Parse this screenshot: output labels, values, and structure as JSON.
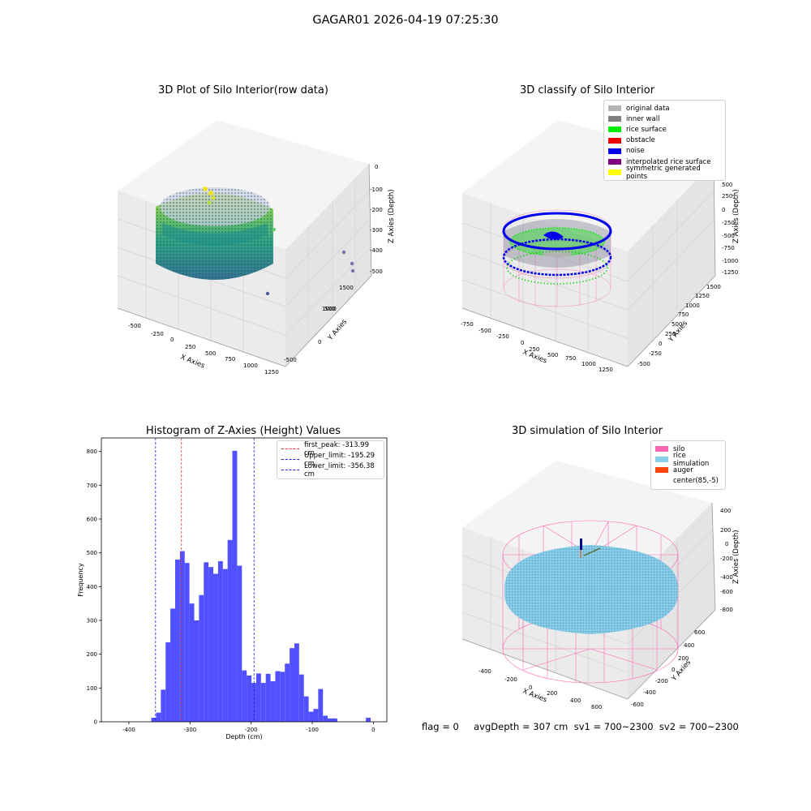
{
  "suptitle": "GAGAR01 2026-04-19 07:25:30",
  "footer": "flag = 0     avgDepth = 307 cm  sv1 = 700~2300  sv2 = 700~2300",
  "colors": {
    "hist_bar": "#5050ff",
    "peak_line": "#e03030",
    "limit_line": "#2020dd",
    "silo": "#ff69b4",
    "rice": "#87cefa",
    "noise": "#0000ee",
    "surface": "#00ee00"
  },
  "panels": {
    "p1": {
      "title": "3D Plot of Silo Interior(row data)",
      "xlabel": "X Axies",
      "ylabel": "Y Axies",
      "zlabel": "Z Axies (Depth)",
      "xticks": [
        "-500",
        "-250",
        "0",
        "250",
        "500",
        "750",
        "1000",
        "1250"
      ],
      "yticks": [
        "-500",
        "0",
        "500",
        "1000",
        "1500"
      ],
      "zticks": [
        "0",
        "-100",
        "-200",
        "-300",
        "-400",
        "-500"
      ]
    },
    "p2": {
      "title": "3D classify of Silo Interior",
      "xlabel": "X Axies",
      "ylabel": "Y Axies",
      "zlabel": "Z Axies (Depth)",
      "xticks": [
        "-750",
        "-500",
        "-250",
        "0",
        "250",
        "500",
        "750",
        "1000",
        "1250"
      ],
      "yticks": [
        "-500",
        "-250",
        "0",
        "250",
        "500",
        "750",
        "1000",
        "1250",
        "1500"
      ],
      "zticks": [
        "500",
        "250",
        "0",
        "-250",
        "-500",
        "-750",
        "-1000",
        "-1250"
      ],
      "legend": [
        {
          "label": "original data",
          "color": "#b3b3b3"
        },
        {
          "label": "inner wall",
          "color": "#808080"
        },
        {
          "label": "rice surface",
          "color": "#00ee00"
        },
        {
          "label": "obstacle",
          "color": "#ee0000"
        },
        {
          "label": "noise",
          "color": "#0000ee"
        },
        {
          "label": "interpolated rice surface",
          "color": "#800080"
        },
        {
          "label": "symmetric generated points",
          "color": "#ffff00"
        }
      ]
    },
    "p4": {
      "title": "3D simulation of Silo Interior",
      "xlabel": "X Axies",
      "ylabel": "Y Axies",
      "zlabel": "Z Axies (Depth)",
      "xticks": [
        "-400",
        "-200",
        "0",
        "200",
        "400",
        "600"
      ],
      "yticks": [
        "-600",
        "-400",
        "-200",
        "0",
        "200",
        "400",
        "600"
      ],
      "zticks": [
        "400",
        "200",
        "0",
        "-200",
        "-400",
        "-600",
        "-800"
      ],
      "legend": [
        {
          "label": "silo",
          "color": "#ff69b4"
        },
        {
          "label": "rice simulation",
          "color": "#87ceeb"
        },
        {
          "label": "auger",
          "color": "#ff4500"
        },
        {
          "label": "center(85,-5)",
          "color": "#ffffff"
        }
      ]
    }
  },
  "chart_data": [
    {
      "type": "histogram",
      "title": "Histogram of Z-Axies (Height) Values",
      "xlabel": "Depth (cm)",
      "ylabel": "Frequency",
      "xlim": [
        -445,
        22
      ],
      "ylim": [
        0,
        840
      ],
      "xticks": [
        -400,
        -300,
        -200,
        -100,
        0
      ],
      "yticks": [
        0,
        100,
        200,
        300,
        400,
        500,
        600,
        700,
        800
      ],
      "bin_edges": [
        -363.3,
        -355.5,
        -347.7,
        -339.9,
        -332.1,
        -324.3,
        -316.5,
        -308.7,
        -300.9,
        -293.1,
        -285.3,
        -277.5,
        -269.7,
        -261.9,
        -254.1,
        -246.3,
        -238.5,
        -230.7,
        -222.9,
        -215.1,
        -207.3,
        -199.5,
        -191.7,
        -183.9,
        -176.1,
        -168.3,
        -160.5,
        -152.7,
        -144.9,
        -137.1,
        -129.3,
        -121.5,
        -113.7,
        -105.9,
        -98.1,
        -90.3,
        -82.5,
        -74.7,
        -66.9,
        -59.1,
        -51.3,
        -43.5,
        -35.7,
        -27.9,
        -20.1,
        -12.3,
        -4.5,
        3.3
      ],
      "counts": [
        12,
        27,
        95,
        235,
        335,
        480,
        505,
        470,
        350,
        300,
        375,
        472,
        458,
        438,
        475,
        452,
        538,
        802,
        462,
        152,
        137,
        115,
        143,
        115,
        142,
        120,
        150,
        148,
        172,
        218,
        232,
        140,
        75,
        30,
        38,
        97,
        18,
        10,
        10,
        0,
        0,
        0,
        0,
        0,
        0,
        12,
        0
      ],
      "lines": [
        {
          "label": "first_peak: -313.99 cm",
          "x": -313.99,
          "style": "dashed",
          "color": "red"
        },
        {
          "label": "Upper_limit: -195.29 cm",
          "x": -195.29,
          "style": "dashed",
          "color": "blue"
        },
        {
          "label": "Lower_limit: -356.38 cm",
          "x": -356.38,
          "style": "dashed",
          "color": "blue"
        }
      ],
      "legend_position": "upper right"
    }
  ]
}
